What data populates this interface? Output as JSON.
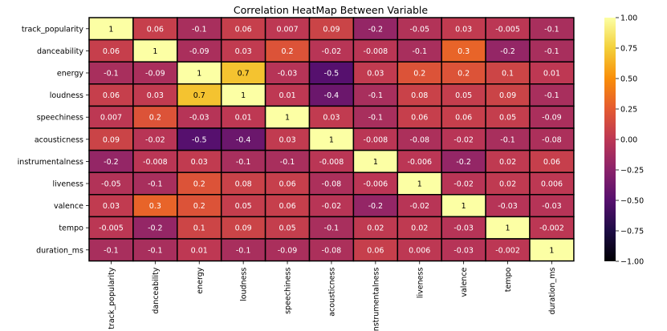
{
  "chart_data": {
    "type": "heatmap",
    "title": "Correlation HeatMap Between Variable",
    "variables": [
      "track_popularity",
      "danceability",
      "energy",
      "loudness",
      "speechiness",
      "acousticness",
      "instrumentalness",
      "liveness",
      "valence",
      "tempo",
      "duration_ms"
    ],
    "values": [
      [
        "1",
        "0.06",
        "-0.1",
        "0.06",
        "0.007",
        "0.09",
        "-0.2",
        "-0.05",
        "0.03",
        "-0.005",
        "-0.1"
      ],
      [
        "0.06",
        "1",
        "-0.09",
        "0.03",
        "0.2",
        "-0.02",
        "-0.008",
        "-0.1",
        "0.3",
        "-0.2",
        "-0.1"
      ],
      [
        "-0.1",
        "-0.09",
        "1",
        "0.7",
        "-0.03",
        "-0.5",
        "0.03",
        "0.2",
        "0.2",
        "0.1",
        "0.01"
      ],
      [
        "0.06",
        "0.03",
        "0.7",
        "1",
        "0.01",
        "-0.4",
        "-0.1",
        "0.08",
        "0.05",
        "0.09",
        "-0.1"
      ],
      [
        "0.007",
        "0.2",
        "-0.03",
        "0.01",
        "1",
        "0.03",
        "-0.1",
        "0.06",
        "0.06",
        "0.05",
        "-0.09"
      ],
      [
        "0.09",
        "-0.02",
        "-0.5",
        "-0.4",
        "0.03",
        "1",
        "-0.008",
        "-0.08",
        "-0.02",
        "-0.1",
        "-0.08"
      ],
      [
        "-0.2",
        "-0.008",
        "0.03",
        "-0.1",
        "-0.1",
        "-0.008",
        "1",
        "-0.006",
        "-0.2",
        "0.02",
        "0.06"
      ],
      [
        "-0.05",
        "-0.1",
        "0.2",
        "0.08",
        "0.06",
        "-0.08",
        "-0.006",
        "1",
        "-0.02",
        "0.02",
        "0.006"
      ],
      [
        "0.03",
        "0.3",
        "0.2",
        "0.05",
        "0.06",
        "-0.02",
        "-0.2",
        "-0.02",
        "1",
        "-0.03",
        "-0.03"
      ],
      [
        "-0.005",
        "-0.2",
        "0.1",
        "0.09",
        "0.05",
        "-0.1",
        "0.02",
        "0.02",
        "-0.03",
        "1",
        "-0.002"
      ],
      [
        "-0.1",
        "-0.1",
        "0.01",
        "-0.1",
        "-0.09",
        "-0.08",
        "0.06",
        "0.006",
        "-0.03",
        "-0.002",
        "1"
      ]
    ],
    "colorbar": {
      "min": -1.0,
      "max": 1.0,
      "ticks": [
        "1.00",
        "0.75",
        "0.50",
        "0.25",
        "0.00",
        "−0.25",
        "−0.50",
        "−0.75",
        "−1.00"
      ],
      "colormap": "inferno"
    },
    "cell_border_color": "#000000"
  }
}
